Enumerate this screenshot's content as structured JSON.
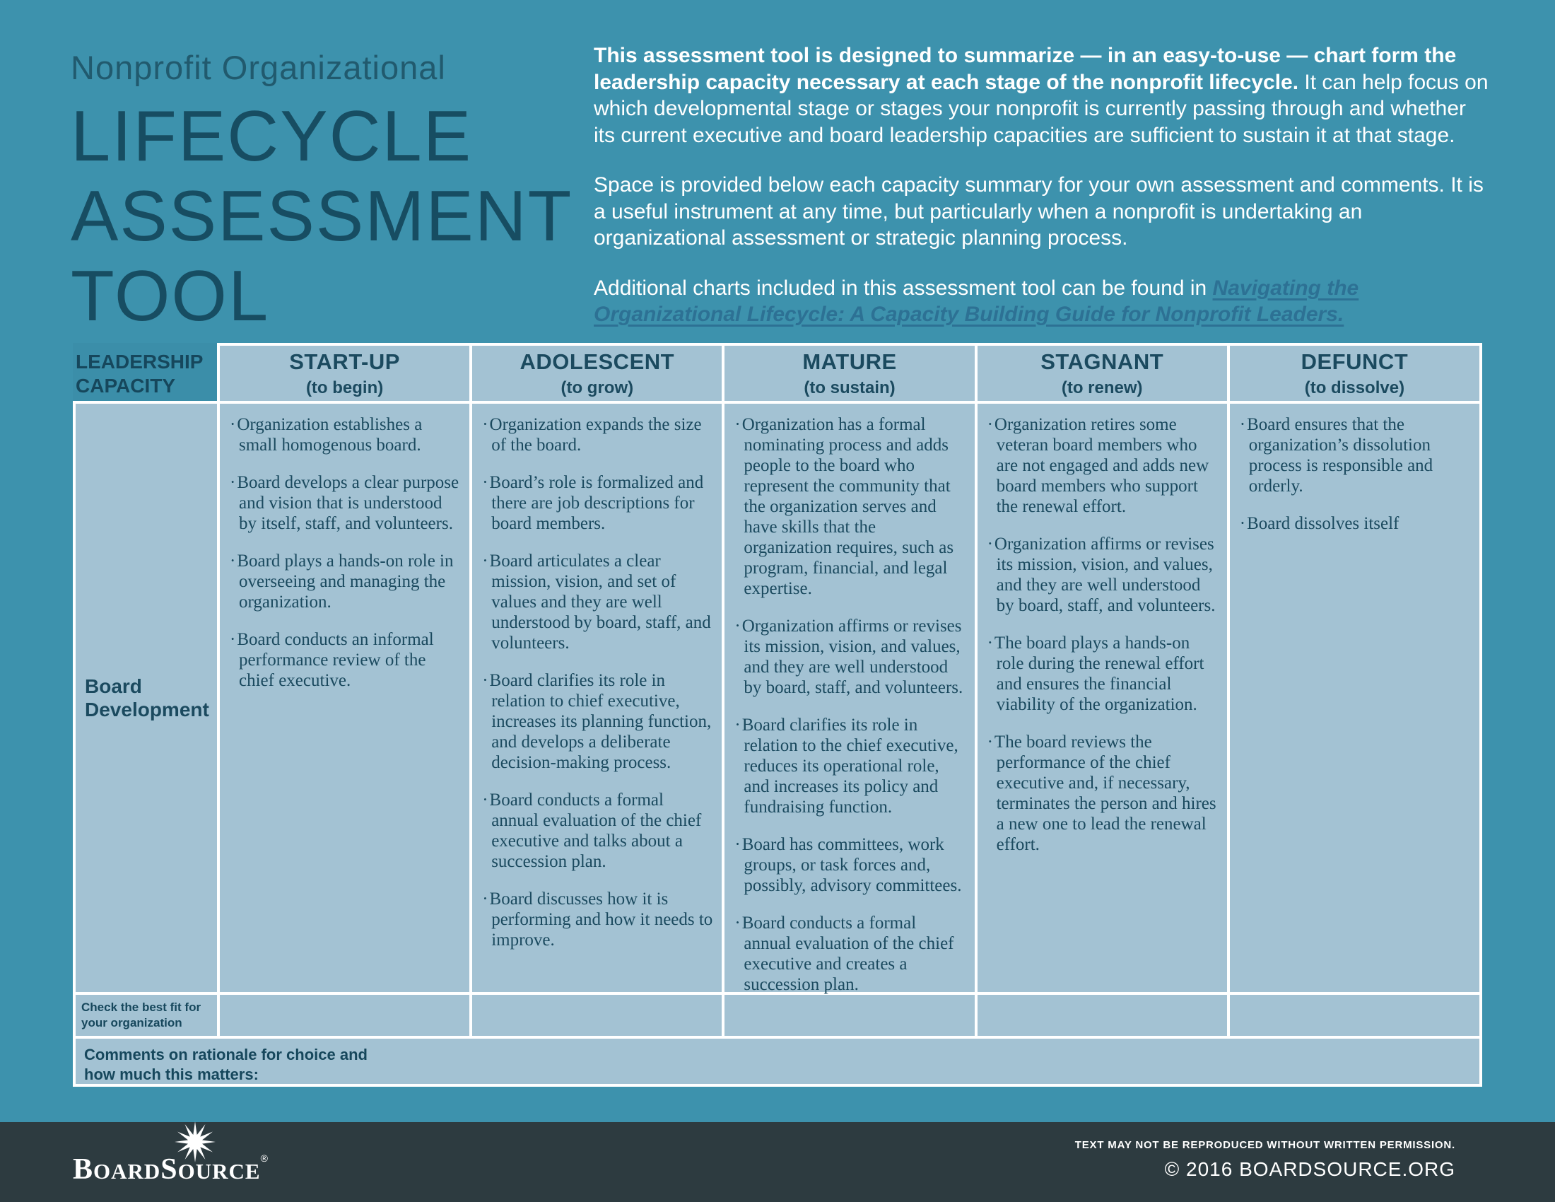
{
  "header": {
    "kicker": "Nonprofit Organizational",
    "title_lines": [
      "LIFECYCLE",
      "ASSESSMENT",
      "TOOL"
    ]
  },
  "intro": {
    "p1_bold": "This assessment tool is designed to summarize — in an easy-to-use — chart form the leadership capacity necessary at each stage of the nonprofit lifecycle.",
    "p1_rest": " It can help focus on which developmental stage or stages your nonprofit is currently passing through and whether its current executive and board leadership capacities are sufficient to sustain it at that stage.",
    "p2": "Space is provided below each capacity summary for your own assessment and comments. It is a useful instrument at any time, but particularly when a nonprofit is undertaking an organizational assessment or strategic planning process.",
    "p3_prefix": "Additional charts included in this assessment tool can be found in ",
    "p3_link": "Navigating the Organizational Lifecycle: A Capacity Building Guide for Nonprofit Leaders."
  },
  "table": {
    "corner_label": "LEADERSHIP CAPACITY",
    "capacity_label": "Board Development",
    "check_label": "Check the best fit for your organization",
    "comments_label": "Comments on rationale for choice and how much this matters:",
    "bullet_char": "·",
    "columns": [
      {
        "name": "START-UP",
        "sub": "(to begin)",
        "bullets": [
          "Organization establishes a small homogenous board.",
          "Board develops a clear purpose and vision that is understood by itself, staff, and volunteers.",
          "Board plays a hands-on role in overseeing and managing the organization.",
          "Board conducts an informal performance review of the chief executive."
        ]
      },
      {
        "name": "ADOLESCENT",
        "sub": "(to grow)",
        "bullets": [
          "Organization expands the size of the board.",
          "Board’s role is formalized and there are job descriptions for board members.",
          "Board articulates a clear mission, vision, and set of values and they are well understood by board, staff, and volunteers.",
          "Board clarifies its role in relation to chief executive, increases its planning function, and develops a deliberate decision-making process.",
          "Board conducts a formal annual evaluation of the chief executive and talks about a succession plan.",
          "Board discusses how it is performing and how it needs to improve."
        ]
      },
      {
        "name": "MATURE",
        "sub": "(to sustain)",
        "bullets": [
          "Organization has a formal nominating process and adds people to the board who represent the community that the organization serves and have skills that the organization requires, such as program, financial, and legal expertise.",
          "Organization affirms or revises its mission, vision, and values, and they are well understood by board, staff, and volunteers.",
          "Board clarifies its role in relation to the chief executive, reduces its operational role, and increases its policy and fundraising function.",
          "Board has committees, work groups, or task forces and, possibly, advisory committees.",
          "Board conducts a formal annual evaluation of the chief executive and creates a succession plan."
        ]
      },
      {
        "name": "STAGNANT",
        "sub": "(to renew)",
        "bullets": [
          "Organization retires some veteran board members who are not engaged and adds new board members who support the renewal effort.",
          "Organization affirms or revises its mission, vision, and values, and they are well understood by board, staff, and volunteers.",
          "The board plays a hands-on role during the renewal effort and ensures the financial viability of the organization.",
          "The board reviews the performance of the chief executive and, if necessary, terminates the person and hires a new one to lead the renewal effort."
        ]
      },
      {
        "name": "DEFUNCT",
        "sub": "(to dissolve)",
        "bullets": [
          "Board ensures that the organization’s dissolution process is responsible and orderly.",
          "Board dissolves itself"
        ]
      }
    ]
  },
  "footer": {
    "logo_part1": "B",
    "logo_part2": "OARD",
    "logo_part3": "S",
    "logo_part4": "OURCE",
    "logo_reg": "®",
    "notice": "TEXT MAY NOT BE REPRODUCED WITHOUT WRITTEN PERMISSION.",
    "copyright": "© 2016 BOARDSOURCE.ORG"
  },
  "colors": {
    "page_teal": "#3d92ad",
    "cell_blue": "#a3c2d3",
    "corner_teal": "#3b8ea9",
    "dark_text": "#1b4a5f",
    "link_blue": "#2d7194",
    "footer_dark": "#2d3b40",
    "grid_white": "#ffffff"
  }
}
